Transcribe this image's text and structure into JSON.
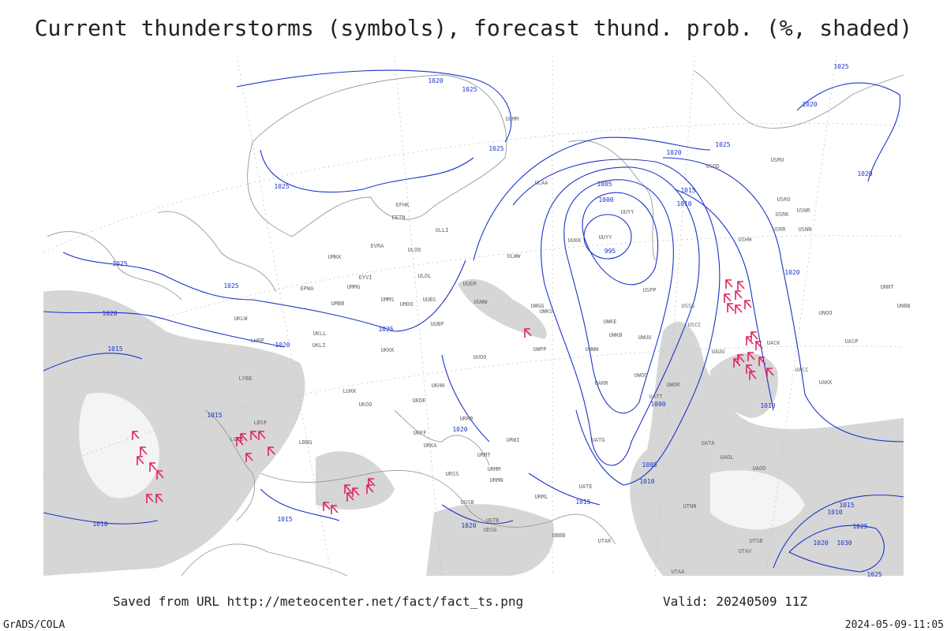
{
  "title": "Current thunderstorms (symbols), forecast thund. prob. (%, shaded)",
  "isobar_labels": [
    "1020",
    "1025",
    "1025",
    "1025",
    "1025",
    "1025",
    "1020",
    "1015",
    "1020",
    "1025",
    "1015",
    "1020",
    "1005",
    "1000",
    "995",
    "1015",
    "1010",
    "1020",
    "1025",
    "1025",
    "1020",
    "1020",
    "1020",
    "1010",
    "1000",
    "1005",
    "1010",
    "1015",
    "1015",
    "1020",
    "1010",
    "1015",
    "1010",
    "1025",
    "1020",
    "1030",
    "1025"
  ],
  "stations": [
    "EFHK",
    "EETN",
    "ULLI",
    "ULOO",
    "EVRA",
    "EYVI",
    "UMKK",
    "EPWA",
    "UMMG",
    "UMMS",
    "UMOO",
    "ULOL",
    "UUEM",
    "UUWW",
    "UWGG",
    "UWKS",
    "UWKE",
    "UWKB",
    "UWUU",
    "UWPP",
    "UWWW",
    "UUOO",
    "UKKK",
    "UKLL",
    "UKLI",
    "UMBB",
    "UUBS",
    "UUBP",
    "UKLW",
    "LHBP",
    "LYBE",
    "LUKK",
    "UKOO",
    "UKDE",
    "UKHH",
    "URRR",
    "URWI",
    "URMT",
    "URMM",
    "URMN",
    "URML",
    "UATE",
    "UATT",
    "UARR",
    "UWOO",
    "UWOR",
    "UBBB",
    "UTAK",
    "UTAA",
    "USSS",
    "USCC",
    "USPP",
    "UUYY",
    "UUYY",
    "UUKK",
    "ULAA",
    "ULMM",
    "ULWW",
    "USDD",
    "USMU",
    "USRO",
    "USRK",
    "USNR",
    "USRR",
    "USNN",
    "USHH",
    "UACC",
    "UAKK",
    "UASP",
    "UNOO",
    "UNNT",
    "UNBB",
    "UACK",
    "UAUU",
    "UATG",
    "UATA",
    "UAOL",
    "UAOO",
    "UTNN",
    "UTSB",
    "UTAV",
    "LBSF",
    "LBBG",
    "LGTS",
    "UKFF",
    "URKA",
    "URSS",
    "UGSB",
    "UGTB",
    "UDSG"
  ],
  "footer": {
    "source": "Saved from URL http://meteocenter.net/fact/fact_ts.png",
    "valid": "Valid: 20240509 11Z",
    "credit": "GrADS/COLA",
    "timestamp": "2024-05-09-11:05"
  }
}
